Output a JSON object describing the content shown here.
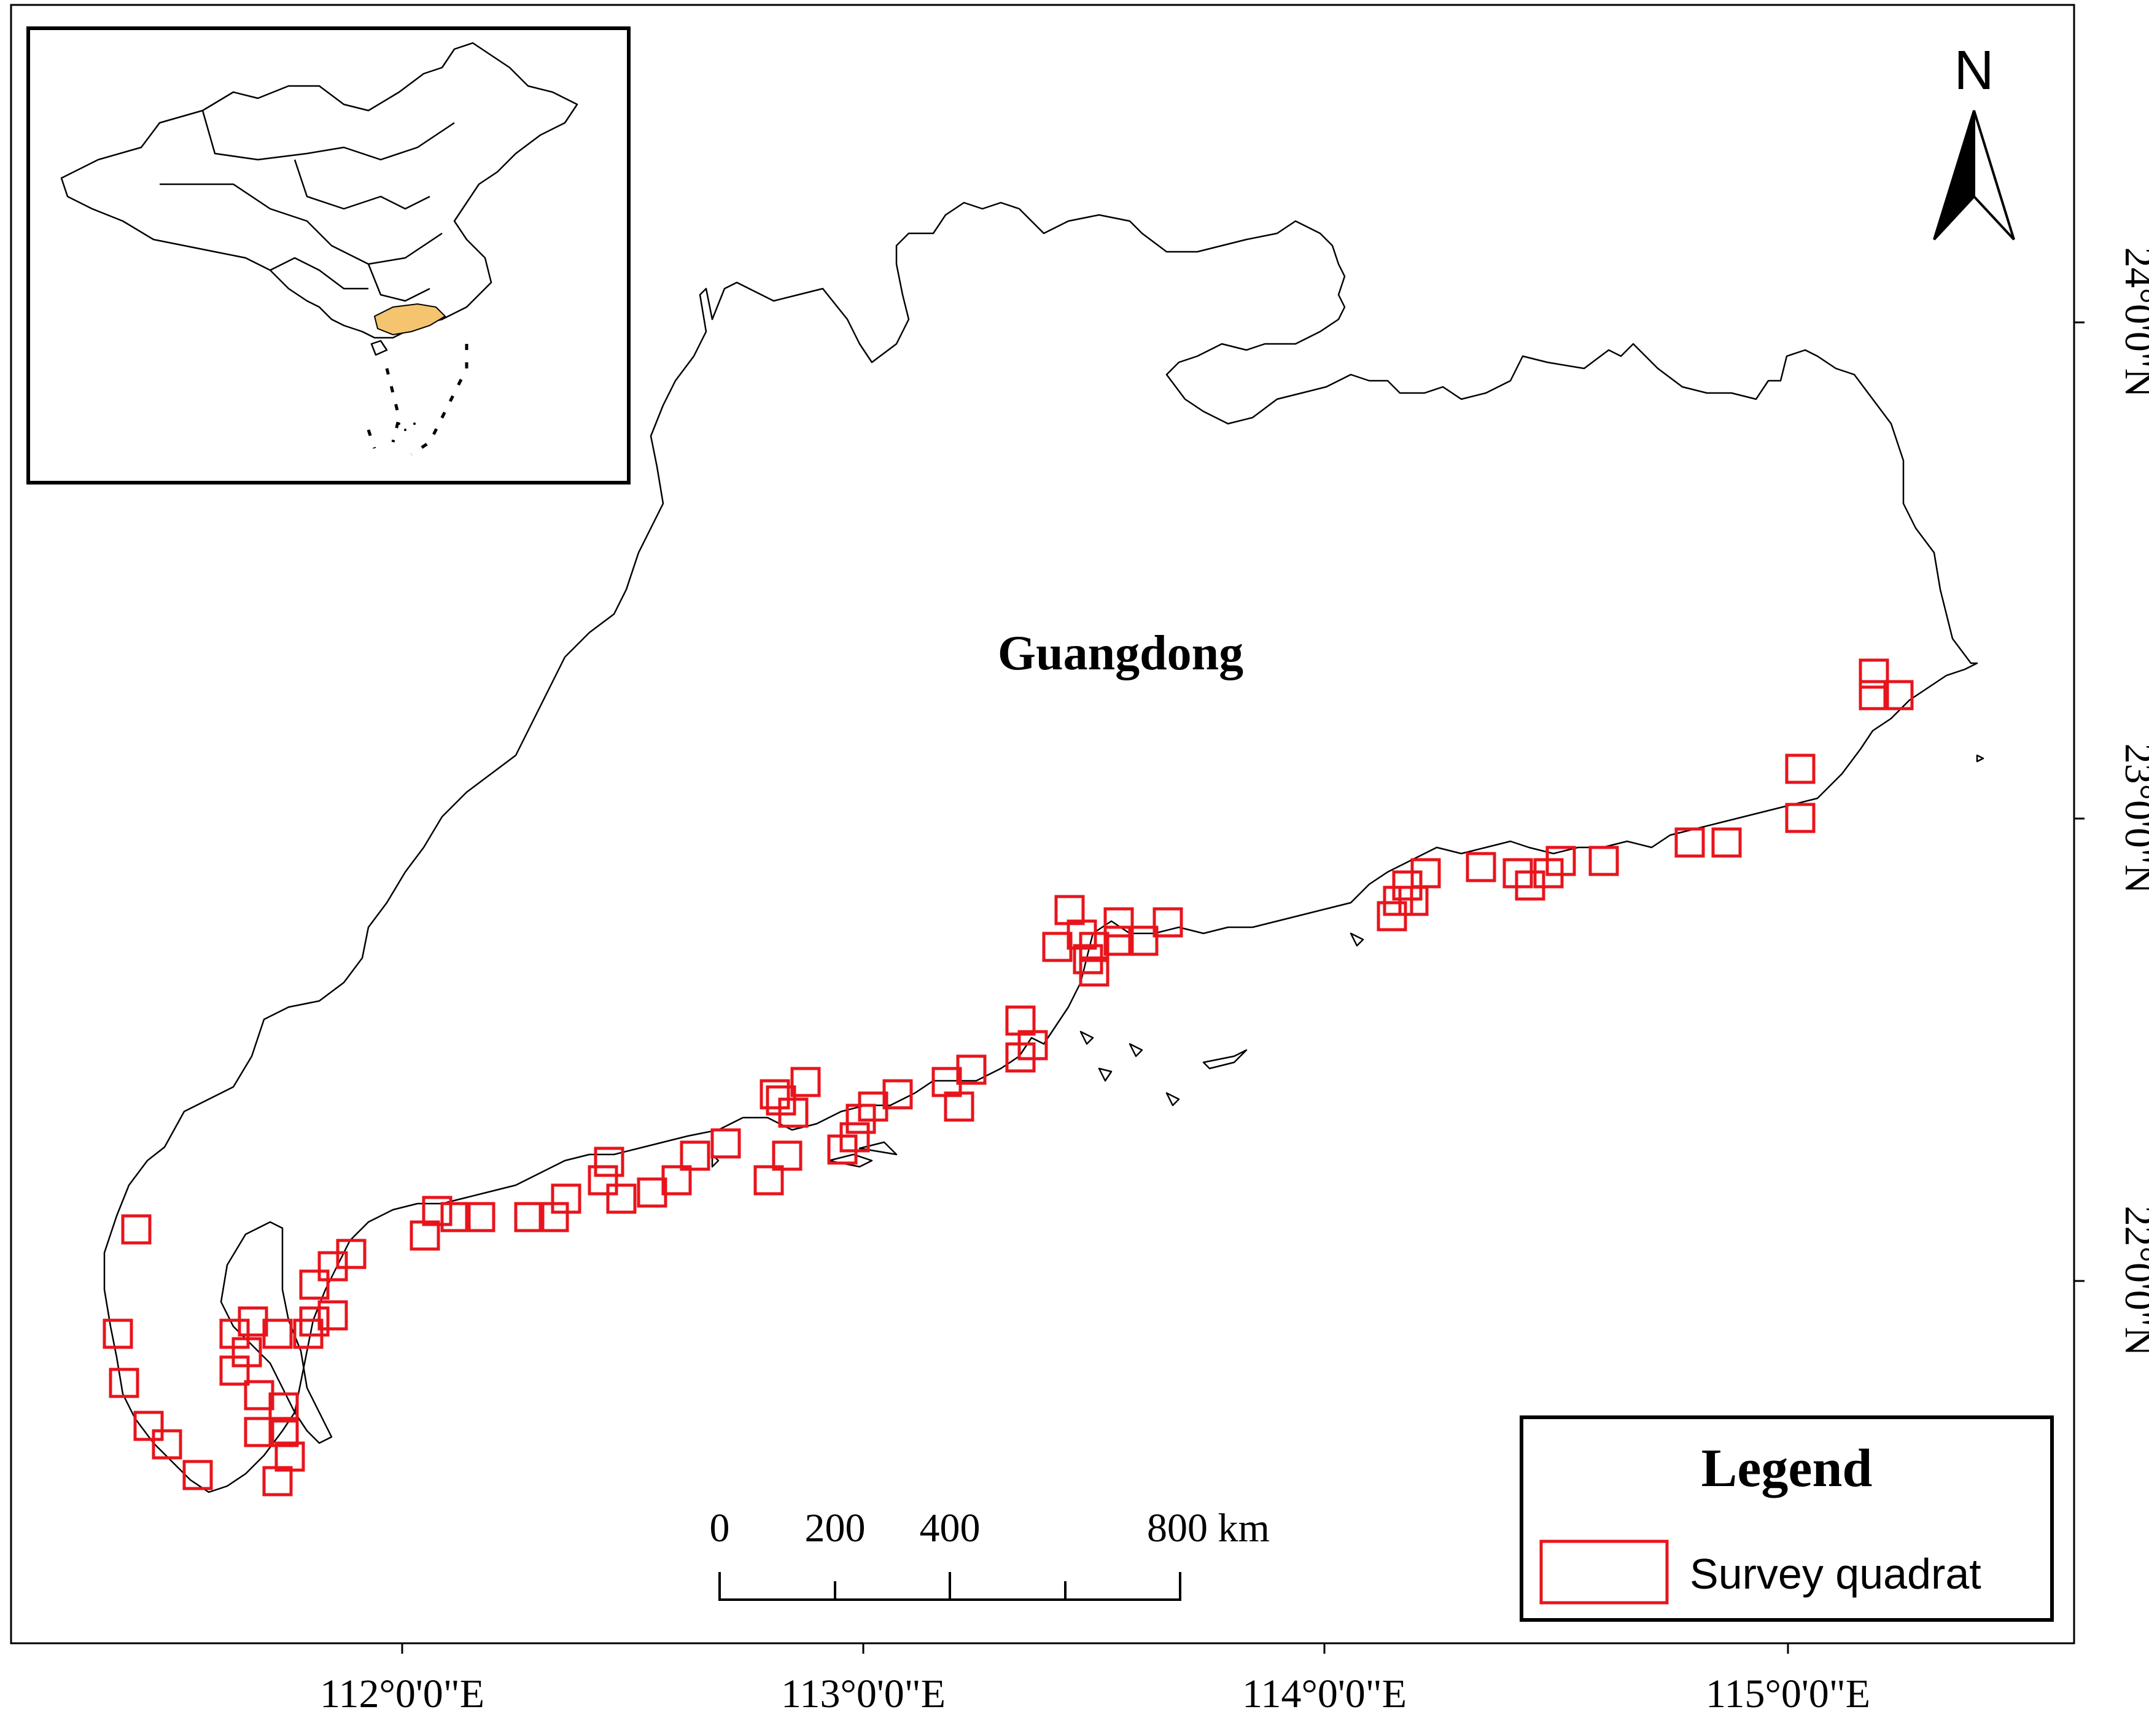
{
  "map": {
    "region_label": "Guangdong",
    "north_label": "N",
    "lon_labels": [
      "112°0'0\"E",
      "113°0'0\"E",
      "114°0'0\"E",
      "115°0'0\"E"
    ],
    "lat_labels": [
      "24°0'0\"N",
      "23°0'0\"N",
      "22°0'0\"N"
    ],
    "scale": {
      "ticks": [
        "0",
        "200",
        "400",
        "800 km"
      ]
    },
    "legend": {
      "title": "Legend",
      "item_label": "Survey quadrat"
    },
    "inset": {
      "highlight_province": "Guangdong"
    },
    "colors": {
      "quadrat": "#e8141c",
      "highlight": "#f5c46e",
      "outline": "#000000"
    },
    "survey_quadrat_count": 82
  }
}
